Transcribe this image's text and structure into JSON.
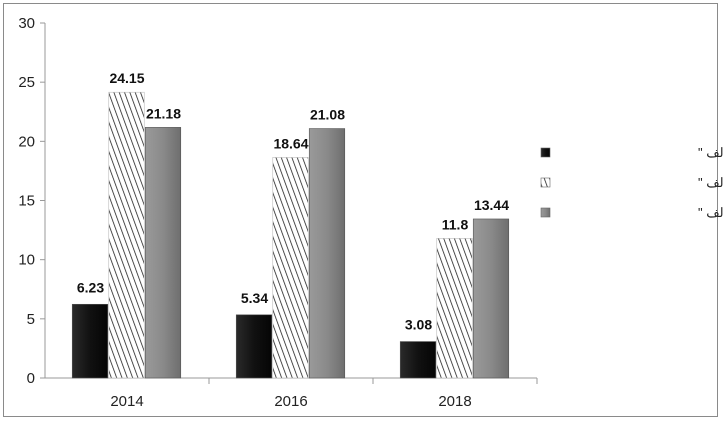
{
  "chart_data": {
    "type": "bar",
    "title": "",
    "xlabel": "",
    "ylabel": "",
    "categories": [
      "2014",
      "2016",
      "2018"
    ],
    "ylim": [
      0,
      30
    ],
    "yticks": [
      "0",
      "5",
      "10",
      "15",
      "20",
      "25",
      "30"
    ],
    "grid": false,
    "legend_position": "right",
    "series": [
      {
        "name": "وفيات \" بالألف \"",
        "values": [
          6.23,
          5.34,
          3.08
        ],
        "labels": [
          "6.23",
          "5.34",
          "3.08"
        ],
        "color": "#151515",
        "pattern": "solid"
      },
      {
        "name": "مصابين \" بالألف \"",
        "values": [
          24.15,
          18.64,
          11.8
        ],
        "labels": [
          "24.15",
          "18.64",
          "11.8"
        ],
        "color": "#ffffff",
        "pattern": "diagonal-hatch"
      },
      {
        "name": "مركبات تالفه \" بالألف \"",
        "values": [
          21.18,
          21.08,
          13.44
        ],
        "labels": [
          "21.18",
          "21.08",
          "13.44"
        ],
        "color": "#8c8c8c",
        "pattern": "solid"
      }
    ]
  }
}
